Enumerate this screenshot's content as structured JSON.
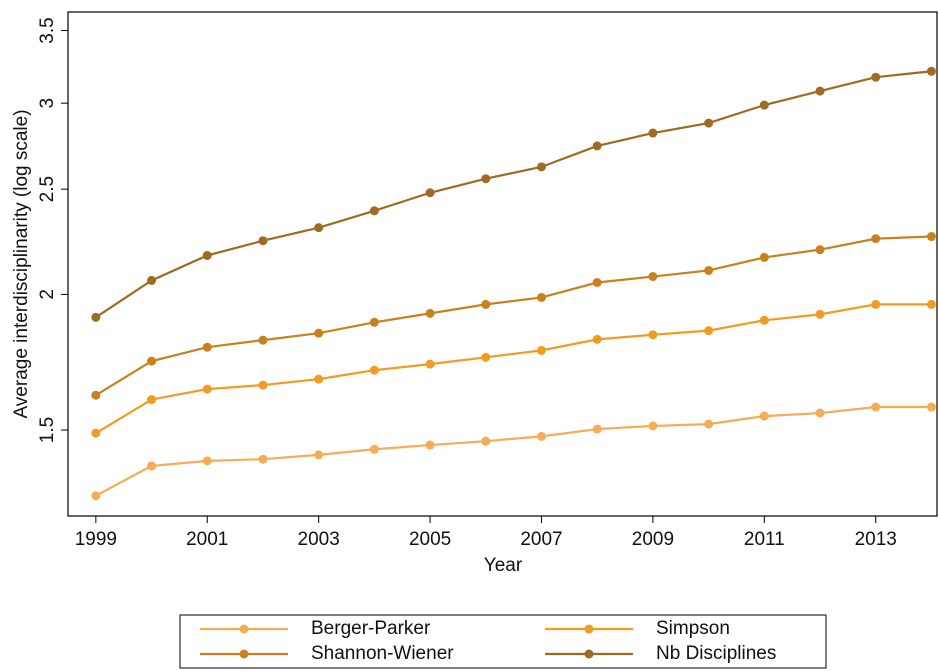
{
  "chart_data": {
    "type": "line",
    "x_label": "Year",
    "y_label": "Average interdisciplinarity (log scale)",
    "yscale": "log",
    "grid": false,
    "legend_position": "bottom",
    "x": [
      1999,
      2000,
      2001,
      2002,
      2003,
      2004,
      2005,
      2006,
      2007,
      2008,
      2009,
      2010,
      2011,
      2012,
      2013,
      2014
    ],
    "xlim": [
      1998.5,
      2014.1
    ],
    "xticks": [
      1999,
      2001,
      2003,
      2005,
      2007,
      2009,
      2011,
      2013
    ],
    "ylim": [
      1.25,
      3.64
    ],
    "yticks": [
      1.5,
      2,
      2.5,
      3,
      3.5
    ],
    "series": [
      {
        "name": "Berger-Parker",
        "color": "#f6ab55",
        "values": [
          1.305,
          1.39,
          1.405,
          1.41,
          1.423,
          1.44,
          1.453,
          1.465,
          1.48,
          1.503,
          1.513,
          1.519,
          1.545,
          1.555,
          1.575,
          1.575
        ]
      },
      {
        "name": "Simpson",
        "color": "#f29b22",
        "values": [
          1.49,
          1.6,
          1.636,
          1.65,
          1.671,
          1.703,
          1.725,
          1.75,
          1.776,
          1.818,
          1.836,
          1.852,
          1.893,
          1.917,
          1.958,
          1.958
        ]
      },
      {
        "name": "Shannon-Wiener",
        "color": "#c9811f",
        "values": [
          1.615,
          1.736,
          1.788,
          1.815,
          1.842,
          1.885,
          1.921,
          1.958,
          1.987,
          2.051,
          2.077,
          2.104,
          2.163,
          2.199,
          2.251,
          2.261
        ]
      },
      {
        "name": "Nb Disciplines",
        "color": "#9d6c22",
        "values": [
          1.905,
          2.06,
          2.172,
          2.241,
          2.304,
          2.388,
          2.481,
          2.556,
          2.621,
          2.74,
          2.816,
          2.876,
          2.988,
          3.078,
          3.17,
          3.21
        ]
      }
    ]
  }
}
